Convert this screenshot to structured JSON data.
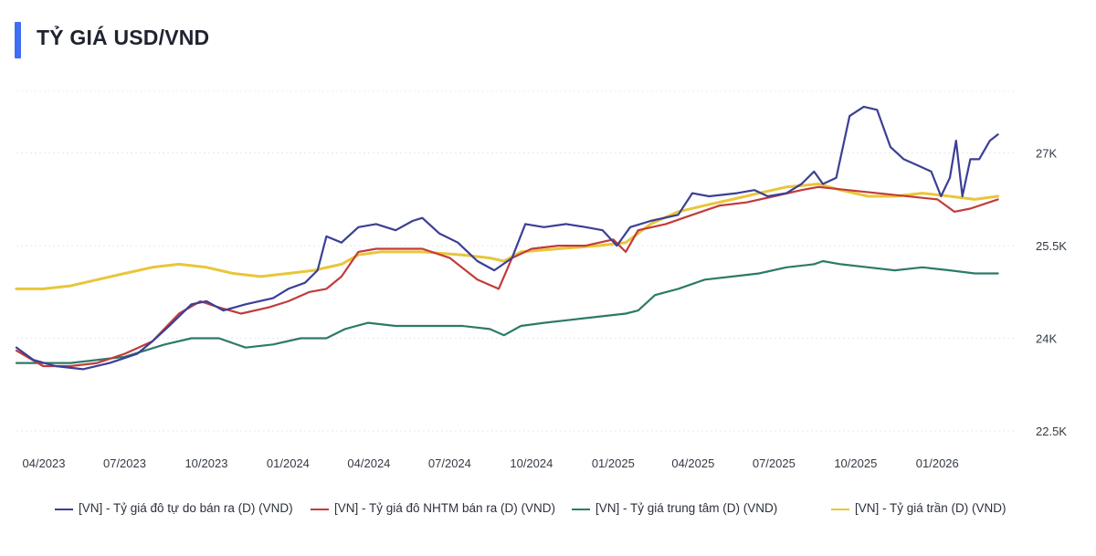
{
  "title": "TỶ GIÁ USD/VND",
  "chart_data": {
    "type": "line",
    "ylim": [
      22500,
      28000
    ],
    "y_ticks": [
      {
        "value": 22500,
        "label": "22.5K"
      },
      {
        "value": 24000,
        "label": "24K"
      },
      {
        "value": 25500,
        "label": "25.5K"
      },
      {
        "value": 27000,
        "label": "27K"
      }
    ],
    "x_ticks": [
      "04/2023",
      "07/2023",
      "10/2023",
      "01/2024",
      "04/2024",
      "07/2024",
      "10/2024",
      "01/2025",
      "04/2025",
      "07/2025",
      "10/2025",
      "01/2026"
    ],
    "x_range": [
      "2023-04-01",
      "2026-04-30"
    ],
    "grid": true,
    "legend_position": "bottom",
    "series": [
      {
        "name": "[VN] - Tỷ giá đô tự do bán ra (D) (VND)",
        "color": "#3b3f94",
        "points": [
          [
            "2023-04-01",
            23850
          ],
          [
            "2023-04-20",
            23650
          ],
          [
            "2023-05-15",
            23550
          ],
          [
            "2023-06-15",
            23500
          ],
          [
            "2023-07-15",
            23600
          ],
          [
            "2023-08-15",
            23750
          ],
          [
            "2023-09-01",
            23950
          ],
          [
            "2023-09-20",
            24200
          ],
          [
            "2023-10-15",
            24550
          ],
          [
            "2023-11-01",
            24600
          ],
          [
            "2023-11-20",
            24450
          ],
          [
            "2023-12-15",
            24550
          ],
          [
            "2024-01-15",
            24650
          ],
          [
            "2024-02-01",
            24800
          ],
          [
            "2024-02-20",
            24900
          ],
          [
            "2024-03-05",
            25100
          ],
          [
            "2024-03-15",
            25650
          ],
          [
            "2024-04-01",
            25550
          ],
          [
            "2024-04-20",
            25800
          ],
          [
            "2024-05-10",
            25850
          ],
          [
            "2024-06-01",
            25750
          ],
          [
            "2024-06-20",
            25900
          ],
          [
            "2024-07-01",
            25950
          ],
          [
            "2024-07-20",
            25700
          ],
          [
            "2024-08-10",
            25550
          ],
          [
            "2024-09-01",
            25250
          ],
          [
            "2024-09-20",
            25100
          ],
          [
            "2024-10-10",
            25300
          ],
          [
            "2024-10-25",
            25850
          ],
          [
            "2024-11-15",
            25800
          ],
          [
            "2024-12-10",
            25850
          ],
          [
            "2025-01-01",
            25800
          ],
          [
            "2025-01-20",
            25750
          ],
          [
            "2025-02-05",
            25500
          ],
          [
            "2025-02-20",
            25800
          ],
          [
            "2025-03-15",
            25900
          ],
          [
            "2025-04-15",
            26000
          ],
          [
            "2025-05-01",
            26350
          ],
          [
            "2025-05-20",
            26300
          ],
          [
            "2025-06-20",
            26350
          ],
          [
            "2025-07-10",
            26400
          ],
          [
            "2025-07-25",
            26300
          ],
          [
            "2025-08-15",
            26350
          ],
          [
            "2025-09-01",
            26500
          ],
          [
            "2025-09-15",
            26700
          ],
          [
            "2025-09-25",
            26500
          ],
          [
            "2025-10-10",
            26600
          ],
          [
            "2025-10-25",
            27600
          ],
          [
            "2025-11-10",
            27750
          ],
          [
            "2025-11-25",
            27700
          ],
          [
            "2025-12-10",
            27100
          ],
          [
            "2025-12-25",
            26900
          ],
          [
            "2026-01-10",
            26800
          ],
          [
            "2026-01-25",
            26700
          ],
          [
            "2026-02-05",
            26300
          ],
          [
            "2026-02-15",
            26600
          ],
          [
            "2026-02-22",
            27200
          ],
          [
            "2026-03-01",
            26300
          ],
          [
            "2026-03-10",
            26900
          ],
          [
            "2026-03-20",
            26900
          ],
          [
            "2026-04-01",
            27200
          ],
          [
            "2026-04-10",
            27300
          ]
        ]
      },
      {
        "name": "[VN] - Tỷ giá đô NHTM bán ra (D) (VND)",
        "color": "#c23b3a",
        "points": [
          [
            "2023-04-01",
            23800
          ],
          [
            "2023-05-01",
            23550
          ],
          [
            "2023-06-01",
            23550
          ],
          [
            "2023-07-01",
            23600
          ],
          [
            "2023-08-01",
            23750
          ],
          [
            "2023-09-01",
            23950
          ],
          [
            "2023-10-01",
            24400
          ],
          [
            "2023-10-25",
            24600
          ],
          [
            "2023-11-15",
            24500
          ],
          [
            "2023-12-10",
            24400
          ],
          [
            "2024-01-10",
            24500
          ],
          [
            "2024-02-01",
            24600
          ],
          [
            "2024-02-25",
            24750
          ],
          [
            "2024-03-15",
            24800
          ],
          [
            "2024-04-01",
            25000
          ],
          [
            "2024-04-20",
            25400
          ],
          [
            "2024-05-10",
            25450
          ],
          [
            "2024-06-01",
            25450
          ],
          [
            "2024-07-01",
            25450
          ],
          [
            "2024-08-01",
            25300
          ],
          [
            "2024-09-01",
            24950
          ],
          [
            "2024-09-25",
            24800
          ],
          [
            "2024-10-10",
            25300
          ],
          [
            "2024-11-01",
            25450
          ],
          [
            "2024-12-01",
            25500
          ],
          [
            "2025-01-01",
            25500
          ],
          [
            "2025-02-01",
            25600
          ],
          [
            "2025-02-15",
            25400
          ],
          [
            "2025-03-01",
            25750
          ],
          [
            "2025-04-01",
            25850
          ],
          [
            "2025-05-01",
            26000
          ],
          [
            "2025-06-01",
            26150
          ],
          [
            "2025-07-01",
            26200
          ],
          [
            "2025-08-01",
            26300
          ],
          [
            "2025-09-01",
            26400
          ],
          [
            "2025-09-20",
            26450
          ],
          [
            "2026-02-01",
            26250
          ],
          [
            "2026-02-20",
            26050
          ],
          [
            "2026-03-10",
            26100
          ],
          [
            "2026-04-10",
            26250
          ]
        ]
      },
      {
        "name": "[VN] - Tỷ giá trung tâm (D) (VND)",
        "color": "#2d7a68",
        "points": [
          [
            "2023-04-01",
            23600
          ],
          [
            "2023-06-01",
            23600
          ],
          [
            "2023-08-01",
            23700
          ],
          [
            "2023-09-15",
            23900
          ],
          [
            "2023-10-15",
            24000
          ],
          [
            "2023-11-15",
            24000
          ],
          [
            "2023-12-15",
            23850
          ],
          [
            "2024-01-15",
            23900
          ],
          [
            "2024-02-15",
            24000
          ],
          [
            "2024-03-15",
            24000
          ],
          [
            "2024-04-05",
            24150
          ],
          [
            "2024-05-01",
            24250
          ],
          [
            "2024-06-01",
            24200
          ],
          [
            "2024-07-01",
            24200
          ],
          [
            "2024-08-15",
            24200
          ],
          [
            "2024-09-15",
            24150
          ],
          [
            "2024-10-01",
            24050
          ],
          [
            "2024-10-20",
            24200
          ],
          [
            "2024-11-15",
            24250
          ],
          [
            "2024-12-15",
            24300
          ],
          [
            "2025-01-15",
            24350
          ],
          [
            "2025-02-15",
            24400
          ],
          [
            "2025-03-01",
            24450
          ],
          [
            "2025-03-20",
            24700
          ],
          [
            "2025-04-15",
            24800
          ],
          [
            "2025-05-15",
            24950
          ],
          [
            "2025-06-15",
            25000
          ],
          [
            "2025-07-15",
            25050
          ],
          [
            "2025-08-15",
            25150
          ],
          [
            "2025-09-15",
            25200
          ],
          [
            "2025-09-25",
            25250
          ],
          [
            "2025-10-15",
            25200
          ],
          [
            "2025-11-15",
            25150
          ],
          [
            "2025-12-15",
            25100
          ],
          [
            "2026-01-15",
            25150
          ],
          [
            "2026-02-15",
            25100
          ],
          [
            "2026-03-15",
            25050
          ],
          [
            "2026-04-10",
            25050
          ]
        ]
      },
      {
        "name": "[VN] - Tỷ giá trần (D) (VND)",
        "color": "#e9c63a",
        "points": [
          [
            "2023-04-01",
            24800
          ],
          [
            "2023-05-01",
            24800
          ],
          [
            "2023-06-01",
            24850
          ],
          [
            "2023-07-01",
            24950
          ],
          [
            "2023-08-01",
            25050
          ],
          [
            "2023-09-01",
            25150
          ],
          [
            "2023-10-01",
            25200
          ],
          [
            "2023-11-01",
            25150
          ],
          [
            "2023-12-01",
            25050
          ],
          [
            "2024-01-01",
            25000
          ],
          [
            "2024-02-01",
            25050
          ],
          [
            "2024-03-01",
            25100
          ],
          [
            "2024-04-01",
            25200
          ],
          [
            "2024-04-20",
            25350
          ],
          [
            "2024-05-15",
            25400
          ],
          [
            "2024-07-01",
            25400
          ],
          [
            "2024-08-15",
            25350
          ],
          [
            "2024-09-15",
            25300
          ],
          [
            "2024-10-01",
            25250
          ],
          [
            "2024-10-20",
            25400
          ],
          [
            "2024-12-01",
            25450
          ],
          [
            "2025-01-15",
            25500
          ],
          [
            "2025-02-15",
            25550
          ],
          [
            "2025-03-15",
            25850
          ],
          [
            "2025-04-15",
            26050
          ],
          [
            "2025-05-15",
            26150
          ],
          [
            "2025-06-15",
            26250
          ],
          [
            "2025-07-15",
            26350
          ],
          [
            "2025-08-15",
            26450
          ],
          [
            "2025-09-20",
            26500
          ],
          [
            "2025-10-15",
            26400
          ],
          [
            "2025-11-15",
            26300
          ],
          [
            "2025-12-15",
            26300
          ],
          [
            "2026-01-15",
            26350
          ],
          [
            "2026-02-15",
            26300
          ],
          [
            "2026-03-15",
            26250
          ],
          [
            "2026-04-10",
            26300
          ]
        ]
      }
    ]
  }
}
